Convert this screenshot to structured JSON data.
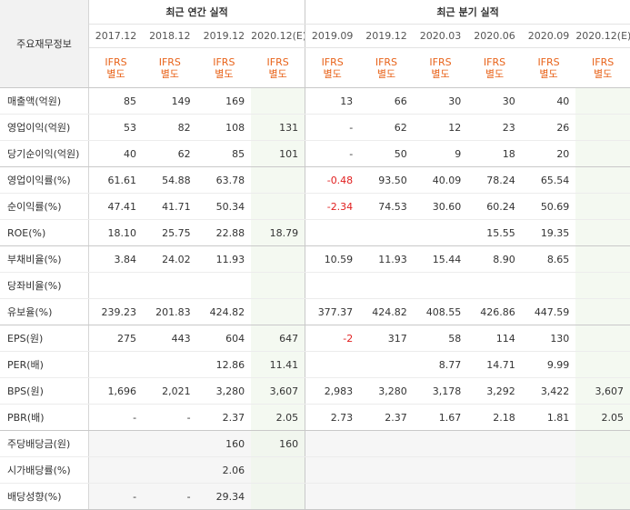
{
  "header": {
    "corner_label": "주요재무정보",
    "annual_title": "최근 연간 실적",
    "quarterly_title": "최근 분기 실적",
    "periods": [
      "2017.12",
      "2018.12",
      "2019.12",
      "2020.12(E)",
      "2019.09",
      "2019.12",
      "2020.03",
      "2020.06",
      "2020.09",
      "2020.12(E)"
    ],
    "ifrs_line1": "IFRS",
    "ifrs_line2": "별도"
  },
  "rows": [
    {
      "label": "매출액(억원)",
      "values": [
        "85",
        "149",
        "169",
        "",
        "13",
        "66",
        "30",
        "30",
        "40",
        ""
      ]
    },
    {
      "label": "영업이익(억원)",
      "values": [
        "53",
        "82",
        "108",
        "131",
        "-",
        "62",
        "12",
        "23",
        "26",
        ""
      ]
    },
    {
      "label": "당기순이익(억원)",
      "values": [
        "40",
        "62",
        "85",
        "101",
        "-",
        "50",
        "9",
        "18",
        "20",
        ""
      ]
    },
    {
      "label": "영업이익률(%)",
      "values": [
        "61.61",
        "54.88",
        "63.78",
        "",
        "-0.48",
        "93.50",
        "40.09",
        "78.24",
        "65.54",
        ""
      ]
    },
    {
      "label": "순이익률(%)",
      "values": [
        "47.41",
        "41.71",
        "50.34",
        "",
        "-2.34",
        "74.53",
        "30.60",
        "60.24",
        "50.69",
        ""
      ]
    },
    {
      "label": "ROE(%)",
      "values": [
        "18.10",
        "25.75",
        "22.88",
        "18.79",
        "",
        "",
        "",
        "15.55",
        "19.35",
        ""
      ]
    },
    {
      "label": "부채비율(%)",
      "values": [
        "3.84",
        "24.02",
        "11.93",
        "",
        "10.59",
        "11.93",
        "15.44",
        "8.90",
        "8.65",
        ""
      ]
    },
    {
      "label": "당좌비율(%)",
      "values": [
        "",
        "",
        "",
        "",
        "",
        "",
        "",
        "",
        "",
        ""
      ]
    },
    {
      "label": "유보율(%)",
      "values": [
        "239.23",
        "201.83",
        "424.82",
        "",
        "377.37",
        "424.82",
        "408.55",
        "426.86",
        "447.59",
        ""
      ]
    },
    {
      "label": "EPS(원)",
      "values": [
        "275",
        "443",
        "604",
        "647",
        "-2",
        "317",
        "58",
        "114",
        "130",
        ""
      ]
    },
    {
      "label": "PER(배)",
      "values": [
        "",
        "",
        "12.86",
        "11.41",
        "",
        "",
        "8.77",
        "14.71",
        "9.99",
        ""
      ]
    },
    {
      "label": "BPS(원)",
      "values": [
        "1,696",
        "2,021",
        "3,280",
        "3,607",
        "2,983",
        "3,280",
        "3,178",
        "3,292",
        "3,422",
        "3,607"
      ]
    },
    {
      "label": "PBR(배)",
      "values": [
        "-",
        "-",
        "2.37",
        "2.05",
        "2.73",
        "2.37",
        "1.67",
        "2.18",
        "1.81",
        "2.05"
      ]
    },
    {
      "label": "주당배당금(원)",
      "values": [
        "",
        "",
        "160",
        "160",
        "",
        "",
        "",
        "",
        "",
        ""
      ]
    },
    {
      "label": "시가배당률(%)",
      "values": [
        "",
        "",
        "2.06",
        "",
        "",
        "",
        "",
        "",
        "",
        ""
      ]
    },
    {
      "label": "배당성향(%)",
      "values": [
        "-",
        "-",
        "29.34",
        "",
        "",
        "",
        "",
        "",
        "",
        ""
      ]
    }
  ],
  "colors": {
    "negative": "#e12020",
    "ifrs": "#e8631a",
    "estimate_bg": "#f4f9f1",
    "label_bg": "#f2f2f2"
  }
}
